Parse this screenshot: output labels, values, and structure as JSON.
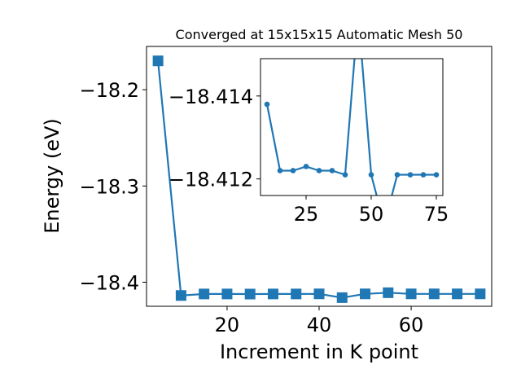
{
  "chart_data": [
    {
      "type": "line",
      "title": "Converged at 15x15x15 Automatic Mesh 50",
      "xlabel": "Increment in K point",
      "ylabel": "Energy (eV)",
      "xlim": [
        2.5,
        77.5
      ],
      "ylim": [
        -18.425,
        -18.155
      ],
      "xticks": [
        20,
        40,
        60
      ],
      "yticks": [
        -18.2,
        -18.3,
        -18.4
      ],
      "ytick_labels": [
        "−18.2",
        "−18.3",
        "−18.4"
      ],
      "marker": "square",
      "grid": false,
      "series": [
        {
          "color": "#1f77b4",
          "x": [
            5,
            10,
            15,
            20,
            25,
            30,
            35,
            40,
            45,
            50,
            55,
            60,
            65,
            70,
            75
          ],
          "y": [
            -18.17,
            -18.4138,
            -18.4122,
            -18.4122,
            -18.4123,
            -18.4122,
            -18.4122,
            -18.4121,
            -18.416,
            -18.4121,
            -18.4109,
            -18.4121,
            -18.4121,
            -18.4121,
            -18.4121
          ]
        }
      ]
    },
    {
      "type": "line",
      "title": "",
      "xlim": [
        7.5,
        77.5
      ],
      "ylim": [
        -18.4116,
        -18.4149
      ],
      "xticks": [
        25,
        50,
        75
      ],
      "yticks": [
        -18.414,
        -18.412
      ],
      "ytick_labels": [
        "−18.414",
        "−18.412"
      ],
      "marker": "circle",
      "grid": false,
      "series": [
        {
          "color": "#1f77b4",
          "x": [
            10,
            15,
            20,
            25,
            30,
            35,
            40,
            45,
            50,
            55,
            60,
            65,
            70,
            75
          ],
          "y": [
            -18.4138,
            -18.4122,
            -18.4122,
            -18.4123,
            -18.4122,
            -18.4122,
            -18.4121,
            -18.416,
            -18.4121,
            -18.4109,
            -18.4121,
            -18.4121,
            -18.4121,
            -18.4121
          ]
        }
      ]
    }
  ]
}
